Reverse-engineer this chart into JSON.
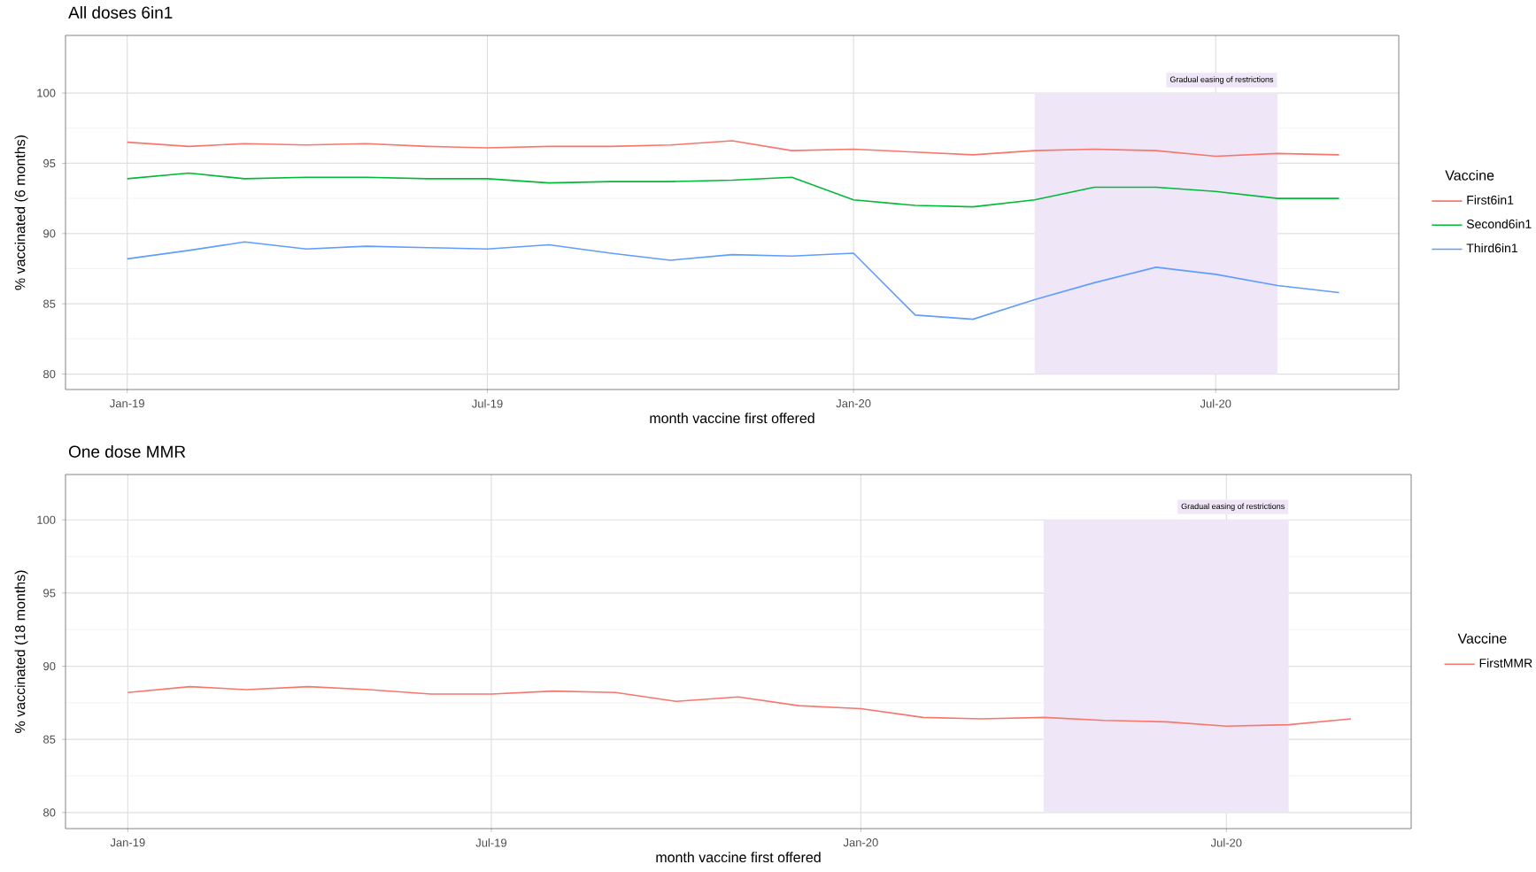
{
  "chart_data": [
    {
      "type": "line",
      "title": "All doses 6in1",
      "xlabel": "month vaccine first offered",
      "ylabel": "% vaccinated (6 months)",
      "legend_title": "Vaccine",
      "legend": "right",
      "grid": true,
      "x": [
        "2019-01",
        "2019-02",
        "2019-03",
        "2019-04",
        "2019-05",
        "2019-06",
        "2019-07",
        "2019-08",
        "2019-09",
        "2019-10",
        "2019-11",
        "2019-12",
        "2020-01",
        "2020-02",
        "2020-03",
        "2020-04",
        "2020-05",
        "2020-06",
        "2020-07",
        "2020-08",
        "2020-09"
      ],
      "series": [
        {
          "name": "First6in1",
          "color": "#f8766d",
          "values": [
            96.5,
            96.2,
            96.4,
            96.3,
            96.4,
            96.2,
            96.1,
            96.2,
            96.2,
            96.3,
            96.6,
            95.9,
            96.0,
            95.8,
            95.6,
            95.9,
            96.0,
            95.9,
            95.5,
            95.7,
            95.6
          ]
        },
        {
          "name": "Second6in1",
          "color": "#00ba38",
          "values": [
            93.9,
            94.3,
            93.9,
            94.0,
            94.0,
            93.9,
            93.9,
            93.6,
            93.7,
            93.7,
            93.8,
            94.0,
            92.4,
            92.0,
            91.9,
            92.4,
            93.3,
            93.3,
            93.0,
            92.5,
            92.5
          ]
        },
        {
          "name": "Third6in1",
          "color": "#619cff",
          "values": [
            88.2,
            88.8,
            89.4,
            88.9,
            89.1,
            89.0,
            88.9,
            89.2,
            88.6,
            88.1,
            88.5,
            88.4,
            88.6,
            84.2,
            83.9,
            85.3,
            86.5,
            87.6,
            87.1,
            86.3,
            85.8
          ]
        }
      ],
      "xlim": [
        "2018-12",
        "2020-10"
      ],
      "xticks": [
        {
          "value": "2019-01",
          "label": "Jan-19"
        },
        {
          "value": "2019-07",
          "label": "Jul-19"
        },
        {
          "value": "2020-01",
          "label": "Jan-20"
        },
        {
          "value": "2020-07",
          "label": "Jul-20"
        }
      ],
      "ylim": [
        78.9,
        104.1
      ],
      "yticks": [
        80,
        85,
        90,
        95,
        100
      ],
      "bands": [
        {
          "axis": "x",
          "from": "2020-04",
          "to": "2020-08",
          "label": "Gradual easing of restrictions",
          "color": "#efe6f7"
        }
      ]
    },
    {
      "type": "line",
      "title": "One dose MMR",
      "xlabel": "month vaccine first offered",
      "ylabel": "% vaccinated (18 months)",
      "legend_title": "Vaccine",
      "legend": "right",
      "grid": true,
      "x": [
        "2019-01",
        "2019-02",
        "2019-03",
        "2019-04",
        "2019-05",
        "2019-06",
        "2019-07",
        "2019-08",
        "2019-09",
        "2019-10",
        "2019-11",
        "2019-12",
        "2020-01",
        "2020-02",
        "2020-03",
        "2020-04",
        "2020-05",
        "2020-06",
        "2020-07",
        "2020-08",
        "2020-09"
      ],
      "series": [
        {
          "name": "FirstMMR",
          "color": "#f8766d",
          "values": [
            88.2,
            88.6,
            88.4,
            88.6,
            88.4,
            88.1,
            88.1,
            88.3,
            88.2,
            87.6,
            87.9,
            87.3,
            87.1,
            86.5,
            86.4,
            86.5,
            86.3,
            86.2,
            85.9,
            86.0,
            86.4
          ]
        }
      ],
      "xlim": [
        "2018-12",
        "2020-10"
      ],
      "xticks": [
        {
          "value": "2019-01",
          "label": "Jan-19"
        },
        {
          "value": "2019-07",
          "label": "Jul-19"
        },
        {
          "value": "2020-01",
          "label": "Jan-20"
        },
        {
          "value": "2020-07",
          "label": "Jul-20"
        }
      ],
      "ylim": [
        78.9,
        103.1
      ],
      "yticks": [
        80,
        85,
        90,
        95,
        100
      ],
      "bands": [
        {
          "axis": "x",
          "from": "2020-04",
          "to": "2020-08",
          "label": "Gradual easing of restrictions",
          "color": "#efe6f7"
        }
      ]
    }
  ]
}
